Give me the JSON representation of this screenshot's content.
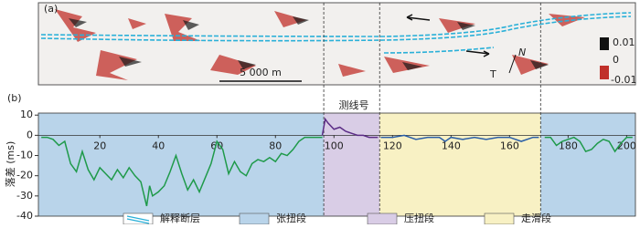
{
  "panel_a": {
    "label": "(a)",
    "scale_label": "5 000 m",
    "north": "N",
    "t_label": "T",
    "colorbar": [
      "0.01",
      "0",
      "-0.01"
    ]
  },
  "chart_data": {
    "type": "line",
    "panel_label": "(b)",
    "ylabel": "落差 (ms)",
    "annotation": "测线号",
    "xlim": [
      -1,
      203
    ],
    "ylim": [
      -40,
      11
    ],
    "xticks": [
      20,
      40,
      60,
      80,
      100,
      120,
      140,
      160,
      180,
      200
    ],
    "yticks": [
      10,
      0,
      -10,
      -20,
      -30,
      -40
    ],
    "regions": [
      {
        "from": -1,
        "to": 96.5,
        "color": "#b9d4ea"
      },
      {
        "from": 96.5,
        "to": 115.6,
        "color": "#d9cde6"
      },
      {
        "from": 115.6,
        "to": 170.6,
        "color": "#f8f1c4"
      },
      {
        "from": 170.6,
        "to": 203,
        "color": "#b9d4ea"
      }
    ],
    "series": [
      {
        "color": "#1f9a4a",
        "x": [
          0,
          2,
          4,
          6,
          8,
          10,
          12,
          14,
          16,
          18,
          20,
          22,
          24,
          26,
          28,
          30,
          32,
          34,
          36,
          37,
          38,
          40,
          42,
          44,
          46,
          48,
          50,
          52,
          54,
          56,
          58,
          60,
          62,
          64,
          66,
          68,
          70,
          72,
          74,
          76,
          78,
          80,
          82,
          84,
          86,
          88,
          90,
          92,
          96
        ],
        "values": [
          -1,
          -1,
          -2,
          -5,
          -3,
          -14,
          -18,
          -8,
          -17,
          -22,
          -16,
          -19,
          -22,
          -17,
          -21,
          -16,
          -20,
          -23,
          -35,
          -25,
          -30,
          -28,
          -25,
          -18,
          -10,
          -19,
          -27,
          -22,
          -28,
          -21,
          -14,
          -3,
          -7,
          -19,
          -13,
          -18,
          -20,
          -14,
          -12,
          -13,
          -11,
          -13,
          -9,
          -10,
          -7,
          -3,
          -1,
          -1,
          -1
        ]
      },
      {
        "color": "#5b2c86",
        "x": [
          96,
          97,
          98,
          100,
          102,
          104,
          106,
          108,
          110,
          112,
          115
        ],
        "values": [
          0,
          8,
          6,
          3,
          4,
          2,
          1,
          0,
          0,
          -1,
          -1
        ]
      },
      {
        "color": "#2a5fa8",
        "x": [
          116,
          120,
          124,
          128,
          132,
          136,
          138,
          140,
          144,
          148,
          152,
          156,
          160,
          164,
          168,
          170
        ],
        "values": [
          -1,
          -1,
          0,
          -2,
          -1,
          -1,
          -3,
          -1,
          -2,
          -1,
          -2,
          -1,
          -1,
          -3,
          -1,
          -1
        ]
      },
      {
        "color": "#1f9a4a",
        "x": [
          172,
          174,
          176,
          178,
          180,
          182,
          184,
          186,
          188,
          190,
          192,
          194,
          196,
          198,
          200,
          202
        ],
        "values": [
          -1,
          -1,
          -5,
          -3,
          -2,
          -1,
          -3,
          -8,
          -7,
          -4,
          -2,
          -3,
          -8,
          -4,
          -1,
          -1
        ]
      }
    ],
    "legend": [
      {
        "label": "解释断层",
        "color": "#2ab0d8"
      },
      {
        "label": "张扭段",
        "color": "#b9d4ea"
      },
      {
        "label": "压扭段",
        "color": "#d9cde6"
      },
      {
        "label": "走滑段",
        "color": "#f8f1c4"
      }
    ]
  }
}
